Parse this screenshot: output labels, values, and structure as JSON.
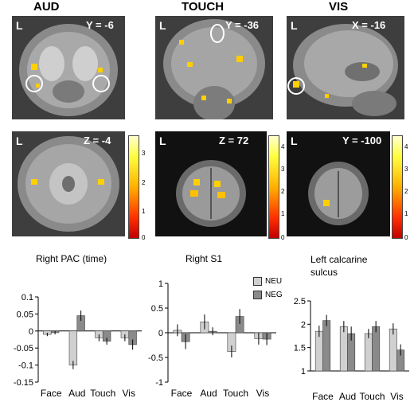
{
  "figure": {
    "columns": [
      {
        "title": "AUD"
      },
      {
        "title": "TOUCH"
      },
      {
        "title": "VIS"
      }
    ],
    "brain_panels": [
      {
        "label": "L",
        "coord": "Y = -6"
      },
      {
        "label": "L",
        "coord": "Y = -36"
      },
      {
        "label": "L",
        "coord": "X = -16"
      },
      {
        "label": "L",
        "coord": "Z = -4"
      },
      {
        "label": "L",
        "coord": "Z = 72"
      },
      {
        "label": "L",
        "coord": "Y = -100"
      }
    ],
    "colorbars": [
      {
        "ticks": [
          "3",
          "2",
          "1",
          "0"
        ]
      },
      {
        "ticks": [
          "4",
          "3",
          "2",
          "1",
          "0"
        ]
      },
      {
        "ticks": [
          "4",
          "3",
          "2",
          "1",
          "0"
        ]
      }
    ],
    "legend": {
      "neu": "NEU",
      "neg": "NEG",
      "neu_color": "#d0d0d0",
      "neg_color": "#8a8a8a"
    }
  },
  "chart_data": [
    {
      "type": "bar",
      "title": "Right PAC (time)",
      "categories": [
        "Face",
        "Aud",
        "Touch",
        "Vis"
      ],
      "series": [
        {
          "name": "NEU",
          "values": [
            -0.01,
            -0.1,
            -0.02,
            -0.02
          ],
          "errors": [
            0.005,
            0.012,
            0.01,
            0.01
          ]
        },
        {
          "name": "NEG",
          "values": [
            -0.005,
            0.045,
            -0.03,
            -0.04
          ],
          "errors": [
            0.005,
            0.015,
            0.01,
            0.015
          ]
        }
      ],
      "ylim": [
        -0.15,
        0.1
      ],
      "yticks": [
        "-0.15",
        "-0.1",
        "-0.05",
        "0",
        "0.05",
        "0.1"
      ]
    },
    {
      "type": "bar",
      "title": "Right S1",
      "categories": [
        "Face",
        "Aud",
        "Touch",
        "Vis"
      ],
      "series": [
        {
          "name": "NEU",
          "values": [
            0.05,
            0.22,
            -0.38,
            -0.12
          ],
          "errors": [
            0.12,
            0.15,
            0.12,
            0.12
          ]
        },
        {
          "name": "NEG",
          "values": [
            -0.18,
            0.03,
            0.33,
            -0.13
          ],
          "errors": [
            0.15,
            0.08,
            0.15,
            0.12
          ]
        }
      ],
      "ylim": [
        -1,
        1
      ],
      "yticks": [
        "-1",
        "-0.5",
        "0",
        "0.5",
        "1"
      ]
    },
    {
      "type": "bar",
      "title": "Left calcarine sulcus",
      "categories": [
        "Face",
        "Aud",
        "Touch",
        "Vis"
      ],
      "series": [
        {
          "name": "NEU",
          "values": [
            1.85,
            1.95,
            1.8,
            1.9
          ],
          "errors": [
            0.12,
            0.12,
            0.1,
            0.12
          ]
        },
        {
          "name": "NEG",
          "values": [
            2.08,
            1.8,
            1.95,
            1.45
          ],
          "errors": [
            0.12,
            0.15,
            0.12,
            0.12
          ]
        }
      ],
      "ylim": [
        1,
        2.5
      ],
      "yticks": [
        "1",
        "1.5",
        "2",
        "2.5"
      ]
    }
  ]
}
